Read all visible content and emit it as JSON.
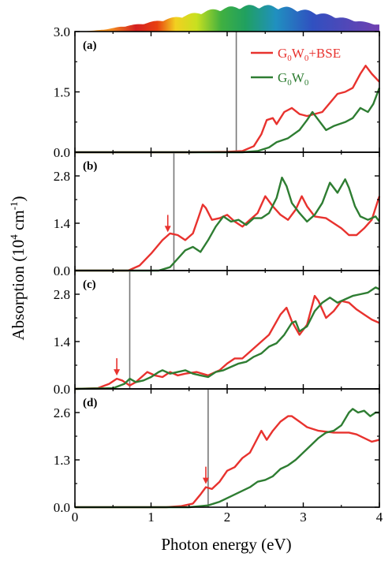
{
  "figure": {
    "ylabel": "Absorption (10^4 cm^-1)",
    "xlabel": "Photon energy (eV)",
    "legend": [
      {
        "name": "G0W0+BSE",
        "color": "#e8322e"
      },
      {
        "name": "G0W0",
        "color": "#2e7d32"
      }
    ]
  },
  "chart_data": [
    {
      "type": "line",
      "panel": "(a)",
      "xlim": [
        0,
        4
      ],
      "ylim": [
        0,
        3.0
      ],
      "yticks": [
        "0.0",
        "1.5",
        "3.0"
      ],
      "xticks": [
        "0",
        "1",
        "2",
        "3",
        "4"
      ],
      "marker_line_x": 2.12,
      "has_legend": true,
      "series": [
        {
          "name": "G0W0+BSE",
          "color": "#e8322e",
          "points": [
            [
              0,
              0
            ],
            [
              1.5,
              0
            ],
            [
              2.0,
              0.01
            ],
            [
              2.2,
              0.03
            ],
            [
              2.35,
              0.15
            ],
            [
              2.45,
              0.45
            ],
            [
              2.52,
              0.8
            ],
            [
              2.6,
              0.85
            ],
            [
              2.65,
              0.7
            ],
            [
              2.75,
              1.0
            ],
            [
              2.85,
              1.1
            ],
            [
              2.95,
              0.95
            ],
            [
              3.05,
              0.9
            ],
            [
              3.25,
              1.0
            ],
            [
              3.45,
              1.45
            ],
            [
              3.55,
              1.5
            ],
            [
              3.65,
              1.6
            ],
            [
              3.75,
              1.95
            ],
            [
              3.82,
              2.15
            ],
            [
              3.9,
              1.95
            ],
            [
              4.0,
              1.75
            ]
          ]
        },
        {
          "name": "G0W0",
          "color": "#2e7d32",
          "points": [
            [
              0,
              0
            ],
            [
              2.2,
              0
            ],
            [
              2.4,
              0.03
            ],
            [
              2.55,
              0.12
            ],
            [
              2.65,
              0.25
            ],
            [
              2.8,
              0.35
            ],
            [
              2.95,
              0.55
            ],
            [
              3.05,
              0.8
            ],
            [
              3.12,
              1.0
            ],
            [
              3.2,
              0.8
            ],
            [
              3.3,
              0.55
            ],
            [
              3.4,
              0.65
            ],
            [
              3.55,
              0.75
            ],
            [
              3.65,
              0.85
            ],
            [
              3.75,
              1.1
            ],
            [
              3.85,
              1.0
            ],
            [
              3.92,
              1.2
            ],
            [
              4.0,
              1.6
            ]
          ]
        }
      ]
    },
    {
      "type": "line",
      "panel": "(b)",
      "xlim": [
        0,
        4
      ],
      "ylim": [
        0,
        3.5
      ],
      "yticks": [
        "0.0",
        "1.4",
        "2.8"
      ],
      "xticks": [
        "0",
        "1",
        "2",
        "3",
        "4"
      ],
      "marker_line_x": 1.3,
      "arrow_x": 1.22,
      "series": [
        {
          "name": "G0W0+BSE",
          "color": "#e8322e",
          "points": [
            [
              0,
              0
            ],
            [
              0.7,
              0
            ],
            [
              0.85,
              0.15
            ],
            [
              1.0,
              0.5
            ],
            [
              1.15,
              0.9
            ],
            [
              1.25,
              1.1
            ],
            [
              1.35,
              1.05
            ],
            [
              1.45,
              0.9
            ],
            [
              1.55,
              1.1
            ],
            [
              1.62,
              1.55
            ],
            [
              1.68,
              1.95
            ],
            [
              1.72,
              1.85
            ],
            [
              1.8,
              1.5
            ],
            [
              1.9,
              1.55
            ],
            [
              2.0,
              1.65
            ],
            [
              2.1,
              1.45
            ],
            [
              2.2,
              1.3
            ],
            [
              2.3,
              1.5
            ],
            [
              2.4,
              1.7
            ],
            [
              2.5,
              2.2
            ],
            [
              2.6,
              1.9
            ],
            [
              2.7,
              1.65
            ],
            [
              2.8,
              1.5
            ],
            [
              2.9,
              1.8
            ],
            [
              2.98,
              2.2
            ],
            [
              3.05,
              1.9
            ],
            [
              3.15,
              1.6
            ],
            [
              3.3,
              1.55
            ],
            [
              3.5,
              1.25
            ],
            [
              3.6,
              1.05
            ],
            [
              3.7,
              1.05
            ],
            [
              3.8,
              1.25
            ],
            [
              3.9,
              1.5
            ],
            [
              4.0,
              2.2
            ]
          ]
        },
        {
          "name": "G0W0",
          "color": "#2e7d32",
          "points": [
            [
              0,
              0
            ],
            [
              1.1,
              0
            ],
            [
              1.25,
              0.1
            ],
            [
              1.35,
              0.35
            ],
            [
              1.45,
              0.6
            ],
            [
              1.55,
              0.7
            ],
            [
              1.65,
              0.55
            ],
            [
              1.75,
              0.9
            ],
            [
              1.85,
              1.3
            ],
            [
              1.95,
              1.6
            ],
            [
              2.05,
              1.45
            ],
            [
              2.15,
              1.5
            ],
            [
              2.25,
              1.35
            ],
            [
              2.35,
              1.55
            ],
            [
              2.45,
              1.55
            ],
            [
              2.55,
              1.7
            ],
            [
              2.65,
              2.15
            ],
            [
              2.72,
              2.75
            ],
            [
              2.78,
              2.5
            ],
            [
              2.85,
              2.0
            ],
            [
              2.95,
              1.7
            ],
            [
              3.05,
              1.45
            ],
            [
              3.15,
              1.65
            ],
            [
              3.25,
              2.0
            ],
            [
              3.35,
              2.6
            ],
            [
              3.45,
              2.3
            ],
            [
              3.55,
              2.7
            ],
            [
              3.6,
              2.45
            ],
            [
              3.68,
              1.9
            ],
            [
              3.75,
              1.6
            ],
            [
              3.85,
              1.5
            ],
            [
              3.95,
              1.6
            ],
            [
              4.0,
              1.45
            ]
          ]
        }
      ]
    },
    {
      "type": "line",
      "panel": "(c)",
      "xlim": [
        0,
        4
      ],
      "ylim": [
        0,
        3.5
      ],
      "yticks": [
        "0.0",
        "1.4",
        "2.8"
      ],
      "xticks": [
        "0",
        "1",
        "2",
        "3",
        "4"
      ],
      "marker_line_x": 0.72,
      "arrow_x": 0.55,
      "series": [
        {
          "name": "G0W0+BSE",
          "color": "#e8322e",
          "points": [
            [
              0,
              0
            ],
            [
              0.3,
              0.02
            ],
            [
              0.45,
              0.15
            ],
            [
              0.55,
              0.3
            ],
            [
              0.62,
              0.25
            ],
            [
              0.72,
              0.1
            ],
            [
              0.8,
              0.2
            ],
            [
              0.95,
              0.5
            ],
            [
              1.05,
              0.4
            ],
            [
              1.15,
              0.35
            ],
            [
              1.25,
              0.5
            ],
            [
              1.35,
              0.4
            ],
            [
              1.45,
              0.45
            ],
            [
              1.6,
              0.5
            ],
            [
              1.75,
              0.4
            ],
            [
              1.9,
              0.55
            ],
            [
              2.0,
              0.75
            ],
            [
              2.1,
              0.9
            ],
            [
              2.2,
              0.9
            ],
            [
              2.3,
              1.1
            ],
            [
              2.45,
              1.4
            ],
            [
              2.55,
              1.6
            ],
            [
              2.7,
              2.2
            ],
            [
              2.78,
              2.4
            ],
            [
              2.85,
              2.0
            ],
            [
              2.95,
              1.6
            ],
            [
              3.05,
              1.9
            ],
            [
              3.15,
              2.75
            ],
            [
              3.2,
              2.6
            ],
            [
              3.3,
              2.1
            ],
            [
              3.4,
              2.3
            ],
            [
              3.5,
              2.6
            ],
            [
              3.6,
              2.55
            ],
            [
              3.7,
              2.35
            ],
            [
              3.8,
              2.2
            ],
            [
              3.9,
              2.05
            ],
            [
              4.0,
              1.95
            ]
          ]
        },
        {
          "name": "G0W0",
          "color": "#2e7d32",
          "points": [
            [
              0,
              0
            ],
            [
              0.5,
              0.02
            ],
            [
              0.65,
              0.15
            ],
            [
              0.72,
              0.3
            ],
            [
              0.8,
              0.2
            ],
            [
              0.9,
              0.25
            ],
            [
              1.0,
              0.35
            ],
            [
              1.1,
              0.5
            ],
            [
              1.15,
              0.55
            ],
            [
              1.25,
              0.45
            ],
            [
              1.35,
              0.5
            ],
            [
              1.45,
              0.55
            ],
            [
              1.55,
              0.45
            ],
            [
              1.65,
              0.4
            ],
            [
              1.75,
              0.35
            ],
            [
              1.85,
              0.5
            ],
            [
              1.95,
              0.55
            ],
            [
              2.05,
              0.65
            ],
            [
              2.15,
              0.75
            ],
            [
              2.25,
              0.8
            ],
            [
              2.35,
              0.95
            ],
            [
              2.45,
              1.05
            ],
            [
              2.55,
              1.25
            ],
            [
              2.65,
              1.35
            ],
            [
              2.75,
              1.6
            ],
            [
              2.85,
              1.95
            ],
            [
              2.9,
              2.0
            ],
            [
              2.95,
              1.7
            ],
            [
              3.05,
              1.85
            ],
            [
              3.15,
              2.3
            ],
            [
              3.25,
              2.55
            ],
            [
              3.35,
              2.7
            ],
            [
              3.45,
              2.55
            ],
            [
              3.55,
              2.65
            ],
            [
              3.65,
              2.75
            ],
            [
              3.75,
              2.8
            ],
            [
              3.85,
              2.85
            ],
            [
              3.95,
              3.0
            ],
            [
              4.0,
              2.95
            ]
          ]
        }
      ]
    },
    {
      "type": "line",
      "panel": "(d)",
      "xlim": [
        0,
        4
      ],
      "ylim": [
        0,
        3.25
      ],
      "yticks": [
        "0.0",
        "1.3",
        "2.6"
      ],
      "xticks": [
        "0",
        "1",
        "2",
        "3",
        "4"
      ],
      "marker_line_x": 1.75,
      "arrow_x": 1.72,
      "series": [
        {
          "name": "G0W0+BSE",
          "color": "#e8322e",
          "points": [
            [
              0,
              0
            ],
            [
              1.2,
              0
            ],
            [
              1.4,
              0.03
            ],
            [
              1.55,
              0.1
            ],
            [
              1.65,
              0.35
            ],
            [
              1.72,
              0.55
            ],
            [
              1.8,
              0.5
            ],
            [
              1.9,
              0.7
            ],
            [
              2.0,
              1.0
            ],
            [
              2.1,
              1.1
            ],
            [
              2.2,
              1.35
            ],
            [
              2.3,
              1.5
            ],
            [
              2.35,
              1.7
            ],
            [
              2.45,
              2.1
            ],
            [
              2.52,
              1.85
            ],
            [
              2.6,
              2.1
            ],
            [
              2.7,
              2.35
            ],
            [
              2.8,
              2.5
            ],
            [
              2.85,
              2.5
            ],
            [
              2.95,
              2.35
            ],
            [
              3.05,
              2.2
            ],
            [
              3.2,
              2.1
            ],
            [
              3.4,
              2.05
            ],
            [
              3.6,
              2.05
            ],
            [
              3.7,
              2.0
            ],
            [
              3.8,
              1.9
            ],
            [
              3.9,
              1.8
            ],
            [
              4.0,
              1.85
            ]
          ]
        },
        {
          "name": "G0W0",
          "color": "#2e7d32",
          "points": [
            [
              0,
              0
            ],
            [
              1.5,
              0
            ],
            [
              1.75,
              0.05
            ],
            [
              1.9,
              0.15
            ],
            [
              2.05,
              0.3
            ],
            [
              2.2,
              0.45
            ],
            [
              2.3,
              0.55
            ],
            [
              2.4,
              0.7
            ],
            [
              2.5,
              0.75
            ],
            [
              2.6,
              0.85
            ],
            [
              2.7,
              1.05
            ],
            [
              2.8,
              1.15
            ],
            [
              2.9,
              1.3
            ],
            [
              3.0,
              1.5
            ],
            [
              3.1,
              1.7
            ],
            [
              3.2,
              1.9
            ],
            [
              3.3,
              2.05
            ],
            [
              3.4,
              2.1
            ],
            [
              3.5,
              2.25
            ],
            [
              3.6,
              2.6
            ],
            [
              3.65,
              2.7
            ],
            [
              3.72,
              2.6
            ],
            [
              3.8,
              2.65
            ],
            [
              3.88,
              2.5
            ],
            [
              3.95,
              2.6
            ],
            [
              4.0,
              2.6
            ]
          ]
        }
      ]
    }
  ]
}
